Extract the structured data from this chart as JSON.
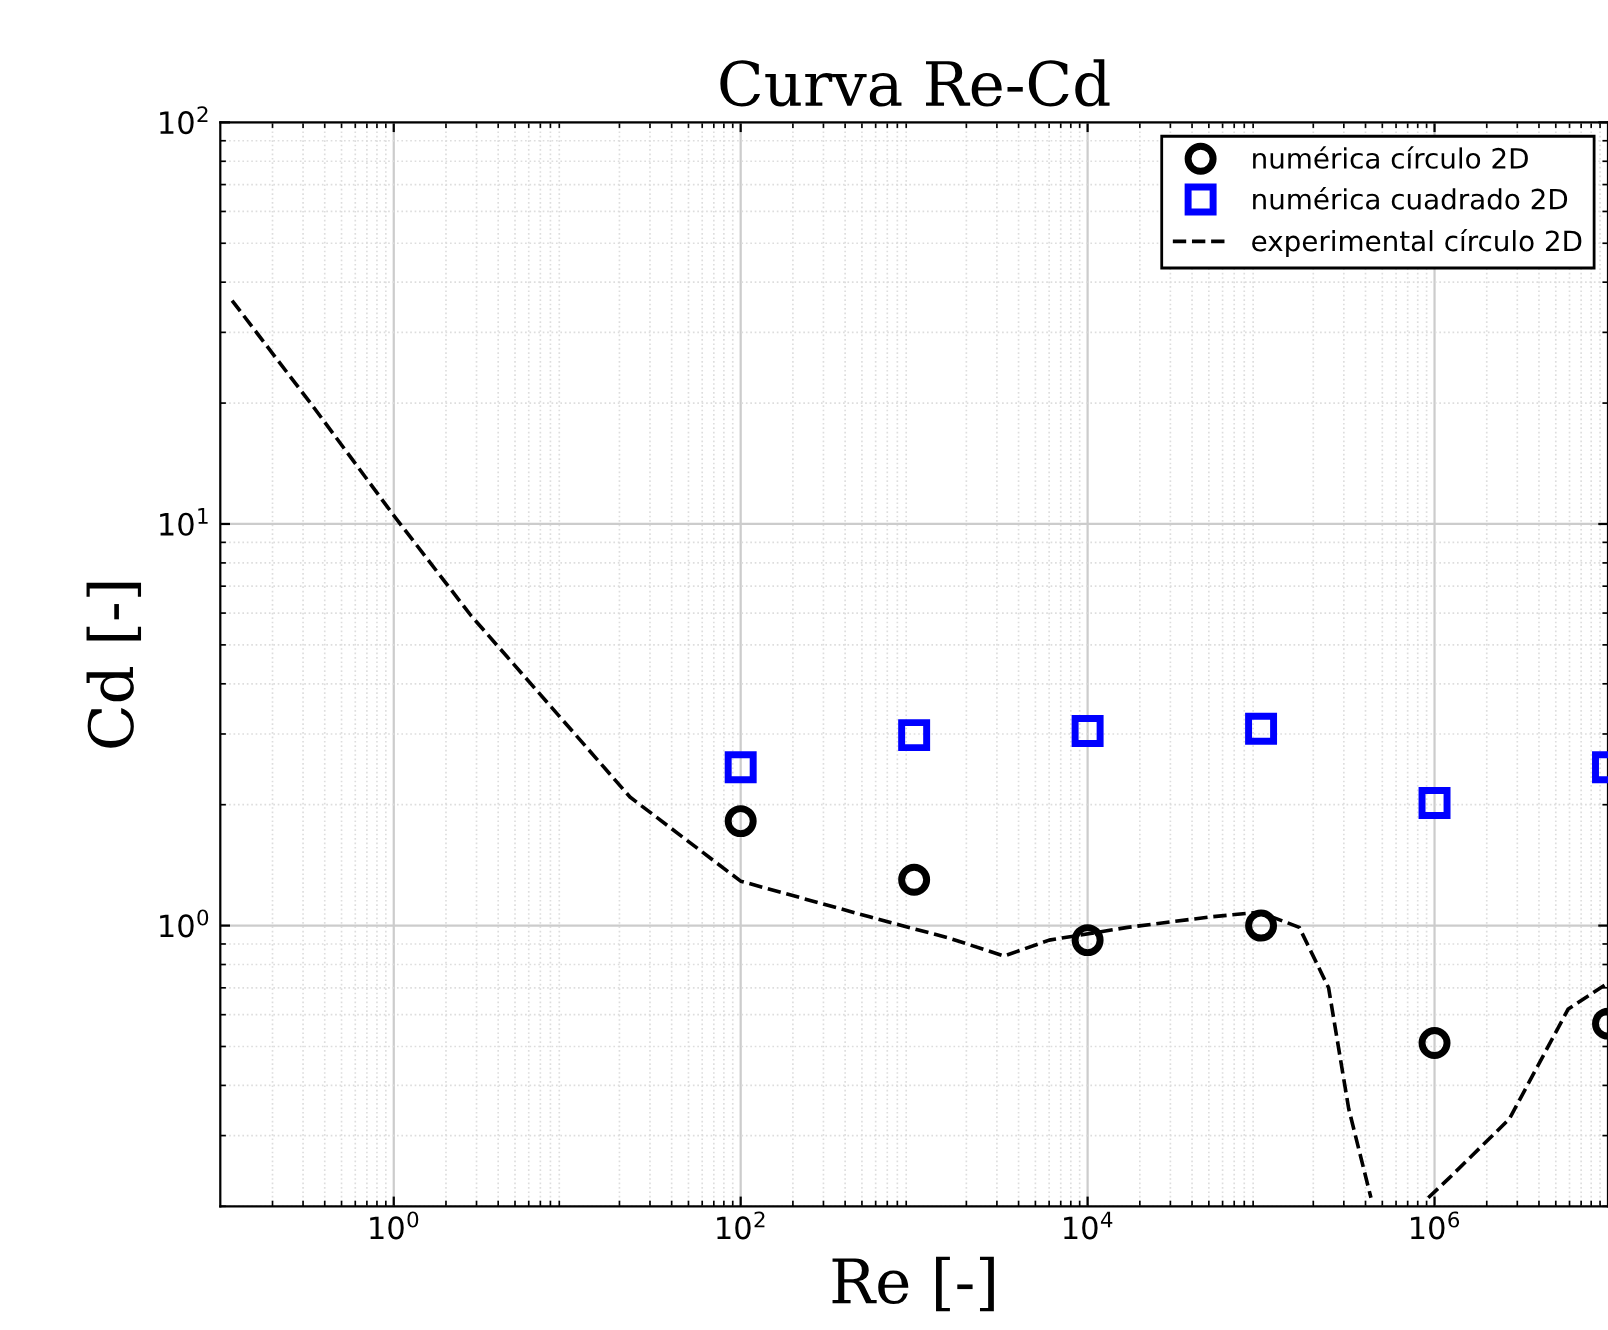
{
  "chart_data": {
    "type": "scatter",
    "title": "Curva Re-Cd",
    "xlabel": "Re [-]",
    "ylabel": "Cd [-]",
    "log": "xy",
    "grid": true,
    "legend": "top right",
    "xlim": [
      0.1,
      10000000
    ],
    "ylim": [
      0.2,
      100
    ],
    "xticks": [
      {
        "value": 1,
        "label": "10$^{0}$"
      },
      {
        "value": 100,
        "label": "10$^{2}$"
      },
      {
        "value": 10000,
        "label": "10$^{4}$"
      },
      {
        "value": 1000000,
        "label": "10$^{6}$"
      }
    ],
    "yticks": [
      {
        "value": 1,
        "label": "10$^{0}$"
      },
      {
        "value": 10,
        "label": "10$^{1}$"
      },
      {
        "value": 100,
        "label": "10$^{2}$"
      }
    ],
    "series": [
      {
        "name": "numérica círculo 2D",
        "marker": "circle",
        "color": "#000000",
        "x": [
          100,
          1000,
          10000,
          100000,
          1000000,
          10000000
        ],
        "values": [
          1.82,
          1.3,
          0.92,
          1.0,
          0.51,
          0.57
        ]
      },
      {
        "name": "numérica cuadrado 2D",
        "marker": "square",
        "color": "#0000ff",
        "x": [
          100,
          1000,
          10000,
          100000,
          1000000,
          10000000
        ],
        "values": [
          2.48,
          2.98,
          3.05,
          3.09,
          2.02,
          2.48
        ]
      },
      {
        "name": "experimental círculo 2D",
        "type": "line",
        "line_style": "dashed",
        "color": "#000000",
        "x": [
          0.117,
          0.34,
          1,
          2.8,
          8.1,
          23,
          100,
          560,
          1600,
          3300,
          6000,
          17000,
          50000,
          98000,
          166000,
          245000,
          320000,
          430000,
          600000,
          920000,
          1200000,
          2700000,
          5900000,
          10000000
        ],
        "values": [
          36,
          19.7,
          10.5,
          5.9,
          3.5,
          2.09,
          1.29,
          1.05,
          0.93,
          0.84,
          0.92,
          0.99,
          1.05,
          1.08,
          0.99,
          0.7,
          0.35,
          0.21,
          null,
          0.21,
          0.234,
          0.33,
          0.62,
          0.72
        ]
      }
    ]
  }
}
